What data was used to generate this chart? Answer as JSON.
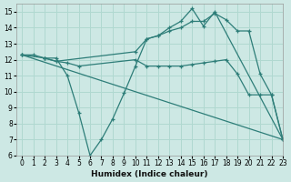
{
  "xlabel": "Humidex (Indice chaleur)",
  "background_color": "#cde8e4",
  "grid_color": "#b0d8d0",
  "line_color": "#2d7d78",
  "xlim": [
    -0.5,
    23
  ],
  "ylim": [
    6,
    15.5
  ],
  "xticks": [
    0,
    1,
    2,
    3,
    4,
    5,
    6,
    7,
    8,
    9,
    10,
    11,
    12,
    13,
    14,
    15,
    16,
    17,
    18,
    19,
    20,
    21,
    22,
    23
  ],
  "yticks": [
    6,
    7,
    8,
    9,
    10,
    11,
    12,
    13,
    14,
    15
  ],
  "lines": [
    {
      "x": [
        0,
        1,
        2,
        3,
        4,
        5,
        6,
        7,
        8,
        9,
        10,
        11,
        12,
        13,
        14,
        15,
        16,
        17,
        23
      ],
      "y": [
        12.3,
        12.3,
        12.1,
        12.1,
        11.0,
        8.7,
        6.0,
        7.0,
        8.3,
        9.9,
        11.6,
        13.3,
        13.5,
        14.0,
        14.4,
        15.2,
        14.1,
        15.0,
        7.0
      ]
    },
    {
      "x": [
        0,
        23
      ],
      "y": [
        12.3,
        7.0
      ]
    },
    {
      "x": [
        0,
        2,
        3,
        4,
        5,
        10,
        11,
        12,
        13,
        14,
        15,
        16,
        17,
        18,
        19,
        20,
        21,
        22,
        23
      ],
      "y": [
        12.3,
        12.1,
        11.9,
        11.8,
        11.6,
        12.0,
        11.6,
        11.6,
        11.6,
        11.6,
        11.7,
        11.8,
        11.9,
        12.0,
        11.1,
        9.8,
        9.8,
        9.8,
        7.0
      ]
    },
    {
      "x": [
        2,
        3,
        10,
        11,
        12,
        13,
        14,
        15,
        16,
        17,
        18,
        19,
        20,
        21,
        22,
        23
      ],
      "y": [
        12.1,
        11.9,
        12.5,
        13.3,
        13.5,
        13.8,
        14.0,
        14.4,
        14.4,
        14.9,
        14.5,
        13.8,
        13.8,
        11.1,
        9.8,
        7.0
      ]
    }
  ]
}
